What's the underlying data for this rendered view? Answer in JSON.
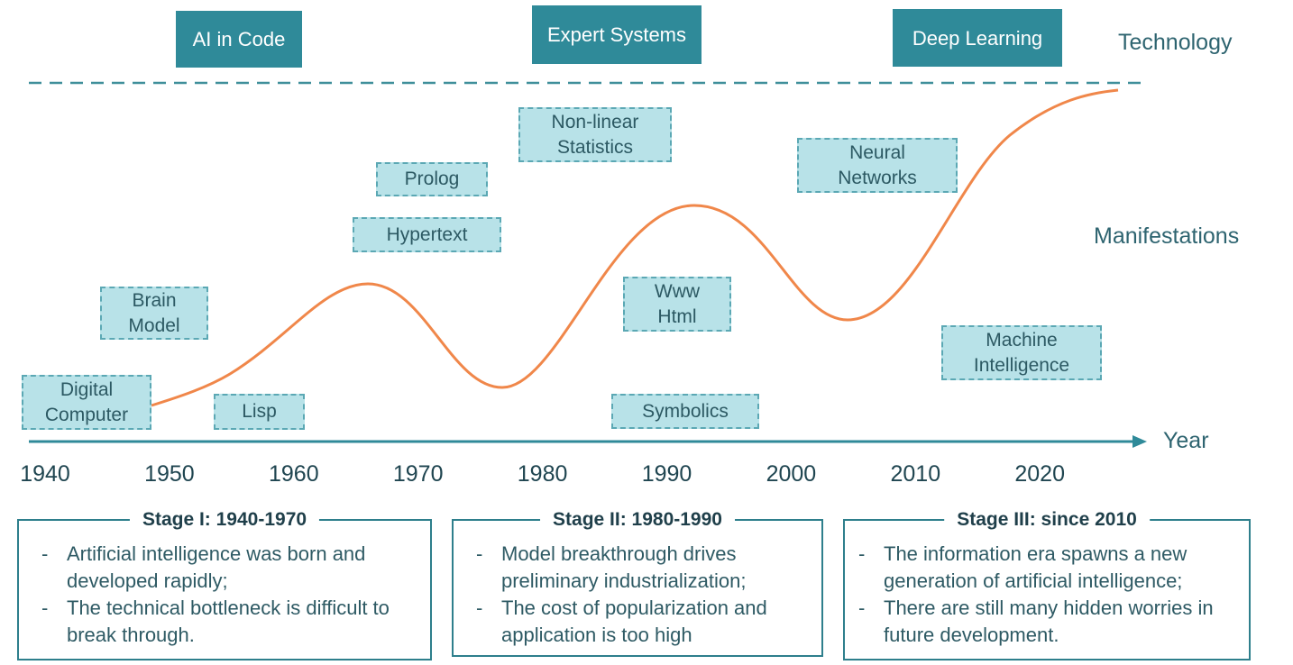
{
  "technology": {
    "label": "Technology",
    "items": [
      "AI in Code",
      "Expert Systems",
      "Deep Learning"
    ]
  },
  "manifestations": {
    "label": "Manifestations",
    "items": [
      "Digital Computer",
      "Brain Model",
      "Lisp",
      "Hypertext",
      "Prolog",
      "Non-linear Statistics",
      "Www Html",
      "Symbolics",
      "Neural Networks",
      "Machine Intelligence"
    ]
  },
  "axis": {
    "label": "Year",
    "years": [
      "1940",
      "1950",
      "1960",
      "1970",
      "1980",
      "1990",
      "2000",
      "2010",
      "2020"
    ]
  },
  "stages": [
    {
      "title": "Stage I: 1940-1970",
      "bullets": [
        "Artificial intelligence was born and developed rapidly;",
        "The technical bottleneck is difficult to break through."
      ]
    },
    {
      "title": "Stage II: 1980-1990",
      "bullets": [
        "Model breakthrough drives preliminary industrialization;",
        "The cost of popularization and application is too high"
      ]
    },
    {
      "title": "Stage III: since 2010",
      "bullets": [
        "The information era spawns a new generation of artificial intelligence;",
        "There are still many hidden worries in future development."
      ]
    }
  ]
}
